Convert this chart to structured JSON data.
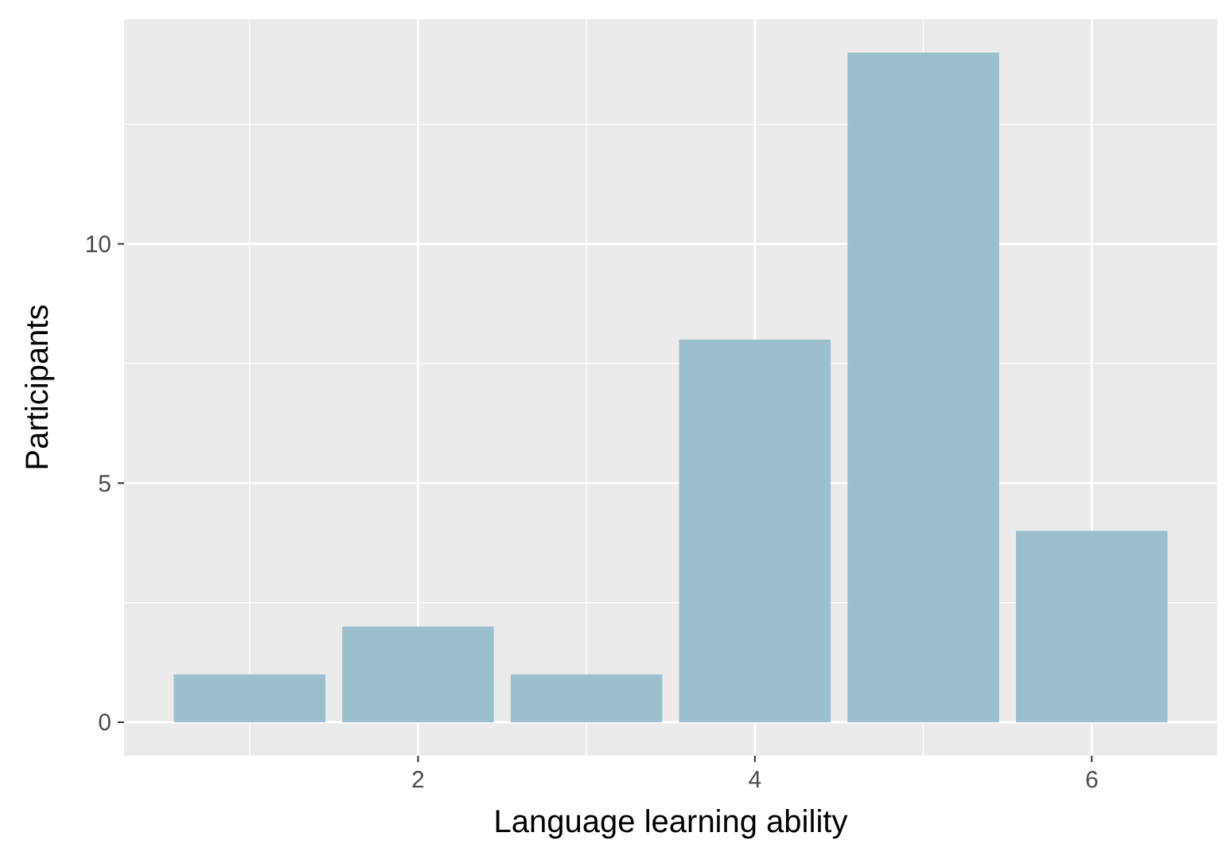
{
  "chart_data": {
    "type": "bar",
    "xlabel": "Language learning ability",
    "ylabel": "Participants",
    "x": [
      1,
      2,
      3,
      4,
      5,
      6
    ],
    "values": [
      1,
      2,
      1,
      8,
      14,
      4
    ],
    "color": "#9bbfcc",
    "xlim": [
      0.255,
      6.745
    ],
    "xticks": [
      2,
      4,
      6
    ],
    "ylim": [
      -0.7,
      14.7
    ],
    "yticks": [
      0,
      5,
      10
    ],
    "grid": true
  }
}
